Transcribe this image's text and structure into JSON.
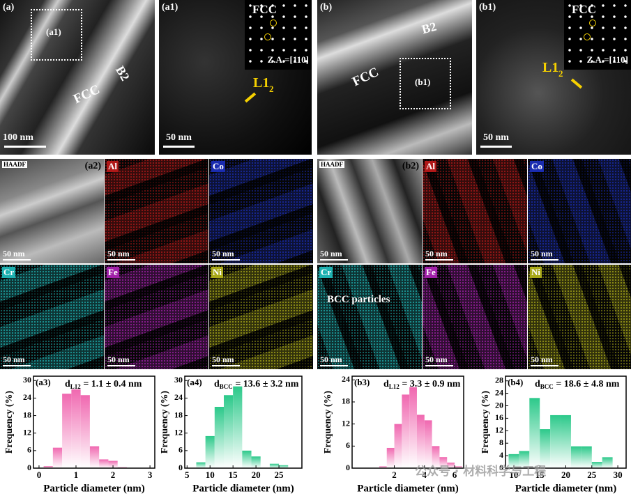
{
  "micrographs": [
    {
      "label": "(a)",
      "phase1": "FCC",
      "phase2": "B2",
      "inset": "(a1)",
      "scale": "100 nm"
    },
    {
      "label": "(a1)",
      "pattern": "FCC",
      "zone_axis": "Z.A.=[110]",
      "arrow": "L1",
      "arrow_sub": "2",
      "scale": "50 nm"
    },
    {
      "label": "(b)",
      "phase1": "FCC",
      "phase2": "B2",
      "inset": "(b1)"
    },
    {
      "label": "(b1)",
      "pattern": "FCC",
      "zone_axis": "Z.A.=[110]",
      "arrow": "L1",
      "arrow_sub": "2",
      "scale": "50 nm"
    }
  ],
  "eds_maps": [
    {
      "label": "(a2)",
      "maps": [
        {
          "name": "HAADF",
          "scale": "50 nm"
        },
        {
          "name": "Al",
          "scale": "50 nm"
        },
        {
          "name": "Co",
          "scale": "50 nm"
        },
        {
          "name": "Cr",
          "scale": "50 nm"
        },
        {
          "name": "Fe",
          "scale": "50 nm"
        },
        {
          "name": "Ni",
          "scale": "50 nm"
        }
      ]
    },
    {
      "label": "(b2)",
      "annotation": "BCC particles",
      "maps": [
        {
          "name": "HAADF",
          "scale": "50 nm"
        },
        {
          "name": "Al",
          "scale": "50 nm"
        },
        {
          "name": "Co",
          "scale": "50 nm"
        },
        {
          "name": "Cr",
          "scale": "50 nm"
        },
        {
          "name": "Fe",
          "scale": "50 nm"
        },
        {
          "name": "Ni",
          "scale": "50 nm"
        }
      ]
    }
  ],
  "watermark": "公众号 · 材料科学与工程",
  "chart_data": [
    {
      "type": "histogram",
      "label": "(a3)",
      "annotation": {
        "symbol": "d",
        "subscript": "L12",
        "text": " = 1.1 ± 0.4 nm"
      },
      "color": "#f068b0",
      "x_label": "Particle diameter (nm)",
      "y_label": "Frequency (%)",
      "bins": [
        0.125,
        0.375,
        0.625,
        0.875,
        1.125,
        1.375,
        1.625,
        1.875,
        2.125,
        2.375
      ],
      "counts": [
        0.7,
        7,
        25.5,
        27,
        25,
        7.5,
        3,
        2.5,
        0.3
      ],
      "xlim": [
        -0.15,
        3.13
      ],
      "xticks": [
        0,
        1,
        2,
        3
      ],
      "ylim": [
        0,
        31.5
      ],
      "yticks": [
        0,
        6,
        12,
        18,
        24,
        30
      ]
    },
    {
      "type": "histogram",
      "label": "(a4)",
      "annotation": {
        "symbol": "d",
        "subscript": "BCC",
        "text": " = 13.6 ± 3.2 nm"
      },
      "color": "#2cc98a",
      "x_label": "Particle diameter (nm)",
      "y_label": "Frequency (%)",
      "bins": [
        7,
        9,
        11,
        13,
        15,
        17,
        19,
        21,
        23,
        25,
        27
      ],
      "counts": [
        2,
        11,
        21,
        25,
        28,
        6,
        4,
        0,
        1.5,
        1
      ],
      "xlim": [
        4.5,
        30
      ],
      "xticks": [
        5,
        10,
        15,
        20,
        25
      ],
      "ylim": [
        0,
        31.5
      ],
      "yticks": [
        0,
        6,
        12,
        18,
        24,
        30
      ]
    },
    {
      "type": "histogram",
      "label": "(b3)",
      "annotation": {
        "symbol": "d",
        "subscript": "L12",
        "text": " = 3.3 ± 0.9 nm"
      },
      "color": "#f068b0",
      "x_label": "Particle diameter (nm)",
      "y_label": "Frequency (%)",
      "bins": [
        1,
        1.5,
        2,
        2.5,
        3,
        3.5,
        4,
        4.5,
        5,
        5.5,
        6,
        6.5
      ],
      "counts": [
        0.5,
        5.5,
        12,
        20,
        22,
        14.5,
        13,
        6,
        3,
        1.5,
        0.5
      ],
      "xlim": [
        -0.8,
        6.6
      ],
      "xticks": [
        2,
        4,
        6
      ],
      "ylim": [
        0,
        25
      ],
      "yticks": [
        0,
        6,
        12,
        18,
        24
      ]
    },
    {
      "type": "histogram",
      "label": "(b4)",
      "annotation": {
        "symbol": "d",
        "subscript": "BCC",
        "text": " = 18.6 ± 4.8 nm"
      },
      "color": "#2cc98a",
      "x_label": "Particle diameter (nm)",
      "y_label": "Frequency (%)",
      "bins": [
        9,
        11,
        13,
        15,
        17,
        19,
        21,
        23,
        25,
        27,
        29,
        31
      ],
      "counts": [
        4.5,
        5.5,
        22.5,
        12.5,
        17,
        17,
        7,
        7,
        2,
        3.5,
        0
      ],
      "xlim": [
        8.4,
        31.6
      ],
      "xticks": [
        10,
        15,
        20,
        25,
        30
      ],
      "ylim": [
        0,
        29.5
      ],
      "yticks": [
        0,
        4,
        8,
        12,
        16,
        20,
        24,
        28
      ]
    }
  ]
}
